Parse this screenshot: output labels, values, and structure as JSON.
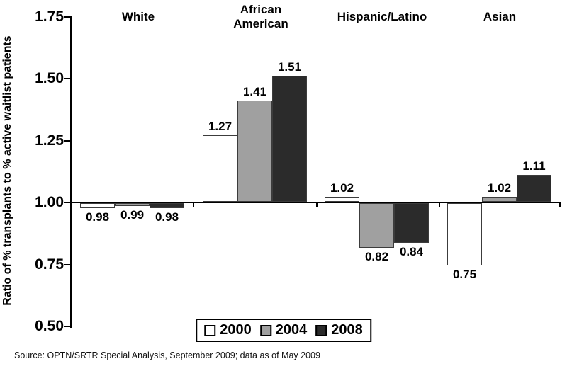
{
  "chart_data": {
    "type": "bar",
    "title": "",
    "ylabel": "Ratio of % transplants to % active waitlist patients",
    "xlabel": "",
    "categories": [
      "White",
      "African American",
      "Hispanic/Latino",
      "Asian"
    ],
    "series": [
      {
        "name": "2000",
        "color": "#ffffff",
        "values": [
          0.98,
          1.27,
          1.02,
          0.75
        ]
      },
      {
        "name": "2004",
        "color": "#a0a0a0",
        "values": [
          0.99,
          1.41,
          0.82,
          1.02
        ]
      },
      {
        "name": "2008",
        "color": "#2b2b2b",
        "values": [
          0.98,
          1.51,
          0.84,
          1.11
        ]
      }
    ],
    "baseline": 1.0,
    "ylim": [
      0.5,
      1.75
    ],
    "yticks": [
      "1.75",
      "1.50",
      "1.25",
      "1.00",
      "0.75",
      "0.50"
    ],
    "grid": false,
    "legend_position": "bottom-center",
    "axis_color": "#000000",
    "text_color": "#000000"
  },
  "source_note": "Source: OPTN/SRTR Special Analysis, September 2009; data as of May 2009"
}
